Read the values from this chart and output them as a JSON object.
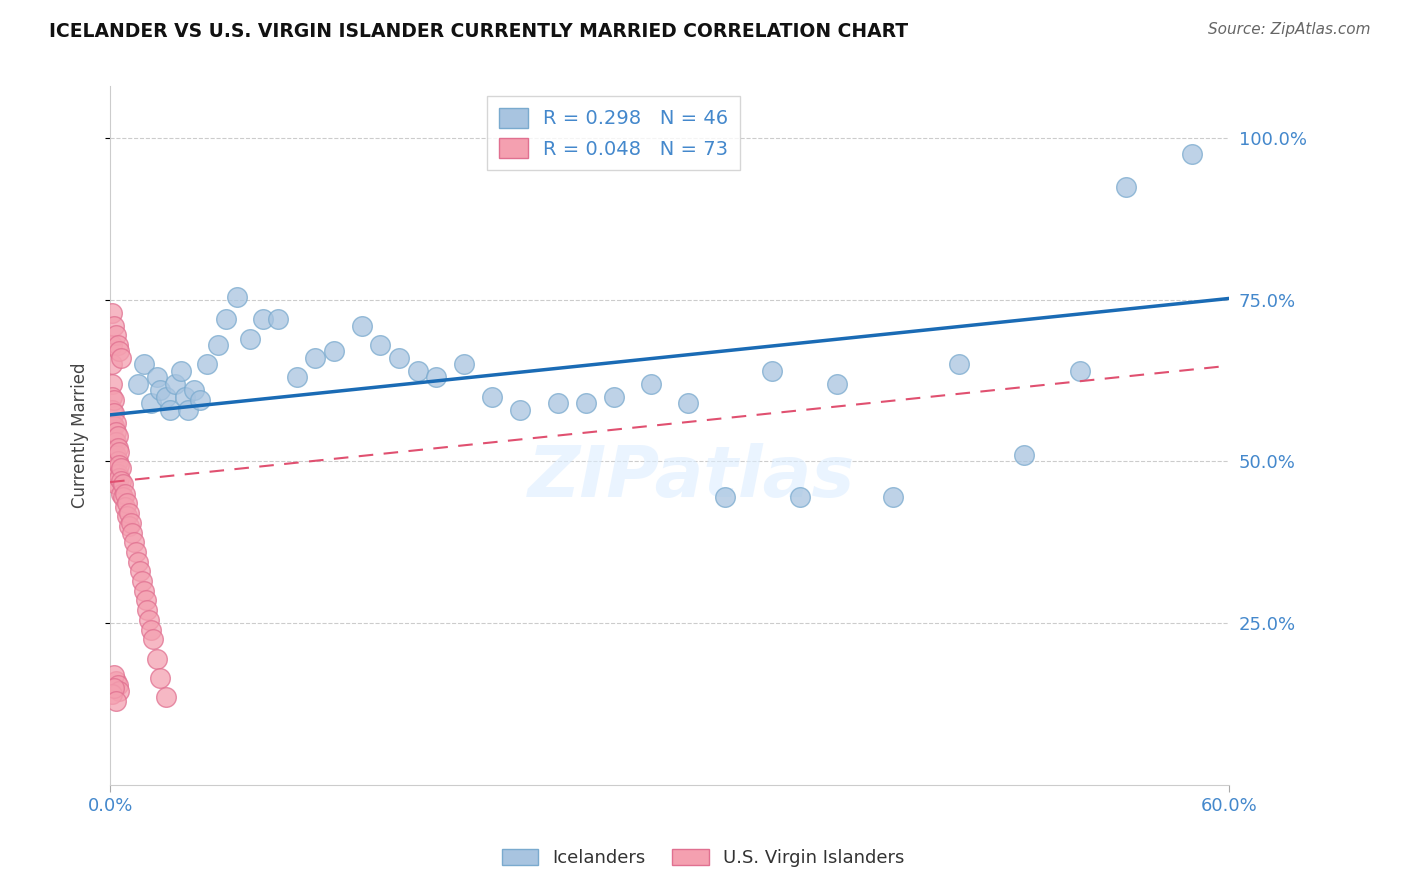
{
  "title": "ICELANDER VS U.S. VIRGIN ISLANDER CURRENTLY MARRIED CORRELATION CHART",
  "source": "Source: ZipAtlas.com",
  "ylabel_label": "Currently Married",
  "legend_r1": "R = 0.298",
  "legend_n1": "N = 46",
  "legend_r2": "R = 0.048",
  "legend_n2": "N = 73",
  "blue_color": "#A8C4E0",
  "pink_color": "#F4A0B0",
  "trend_blue": "#1A6BB5",
  "trend_pink": "#E05070",
  "watermark": "ZIPatlas",
  "x_min": 0.0,
  "x_max": 0.6,
  "y_min": 0.0,
  "y_max": 1.08,
  "blue_line_x": [
    0.0,
    0.6
  ],
  "blue_line_y": [
    0.572,
    0.752
  ],
  "pink_line_x": [
    0.0,
    0.6
  ],
  "pink_line_y": [
    0.468,
    0.648
  ],
  "blue_x": [
    0.015,
    0.018,
    0.022,
    0.025,
    0.027,
    0.03,
    0.032,
    0.035,
    0.038,
    0.04,
    0.042,
    0.045,
    0.048,
    0.052,
    0.058,
    0.062,
    0.068,
    0.075,
    0.082,
    0.09,
    0.1,
    0.11,
    0.12,
    0.135,
    0.145,
    0.155,
    0.165,
    0.175,
    0.19,
    0.205,
    0.22,
    0.24,
    0.255,
    0.27,
    0.29,
    0.31,
    0.33,
    0.355,
    0.37,
    0.39,
    0.42,
    0.455,
    0.49,
    0.52,
    0.545,
    0.58
  ],
  "blue_y": [
    0.62,
    0.65,
    0.59,
    0.63,
    0.61,
    0.6,
    0.58,
    0.62,
    0.64,
    0.6,
    0.58,
    0.61,
    0.595,
    0.65,
    0.68,
    0.72,
    0.755,
    0.69,
    0.72,
    0.72,
    0.63,
    0.66,
    0.67,
    0.71,
    0.68,
    0.66,
    0.64,
    0.63,
    0.65,
    0.6,
    0.58,
    0.59,
    0.59,
    0.6,
    0.62,
    0.59,
    0.445,
    0.64,
    0.445,
    0.62,
    0.445,
    0.65,
    0.51,
    0.64,
    0.925,
    0.975
  ],
  "pink_x": [
    0.001,
    0.001,
    0.001,
    0.001,
    0.001,
    0.001,
    0.001,
    0.001,
    0.001,
    0.001,
    0.001,
    0.002,
    0.002,
    0.002,
    0.002,
    0.002,
    0.002,
    0.002,
    0.002,
    0.003,
    0.003,
    0.003,
    0.003,
    0.003,
    0.003,
    0.003,
    0.004,
    0.004,
    0.004,
    0.004,
    0.005,
    0.005,
    0.005,
    0.006,
    0.006,
    0.006,
    0.007,
    0.007,
    0.008,
    0.008,
    0.009,
    0.009,
    0.01,
    0.01,
    0.011,
    0.012,
    0.013,
    0.014,
    0.015,
    0.016,
    0.017,
    0.018,
    0.019,
    0.02,
    0.021,
    0.022,
    0.023,
    0.025,
    0.027,
    0.03,
    0.001,
    0.002,
    0.003,
    0.004,
    0.005,
    0.006,
    0.003,
    0.002,
    0.004,
    0.005,
    0.001,
    0.002,
    0.003
  ],
  "pink_y": [
    0.68,
    0.65,
    0.62,
    0.6,
    0.58,
    0.56,
    0.55,
    0.54,
    0.53,
    0.52,
    0.51,
    0.595,
    0.575,
    0.555,
    0.535,
    0.515,
    0.5,
    0.485,
    0.47,
    0.56,
    0.545,
    0.53,
    0.51,
    0.495,
    0.48,
    0.465,
    0.54,
    0.52,
    0.5,
    0.48,
    0.515,
    0.495,
    0.475,
    0.49,
    0.47,
    0.45,
    0.465,
    0.445,
    0.45,
    0.43,
    0.435,
    0.415,
    0.42,
    0.4,
    0.405,
    0.39,
    0.375,
    0.36,
    0.345,
    0.33,
    0.315,
    0.3,
    0.285,
    0.27,
    0.255,
    0.24,
    0.225,
    0.195,
    0.165,
    0.135,
    0.73,
    0.71,
    0.695,
    0.68,
    0.67,
    0.66,
    0.16,
    0.17,
    0.155,
    0.145,
    0.14,
    0.15,
    0.13
  ]
}
